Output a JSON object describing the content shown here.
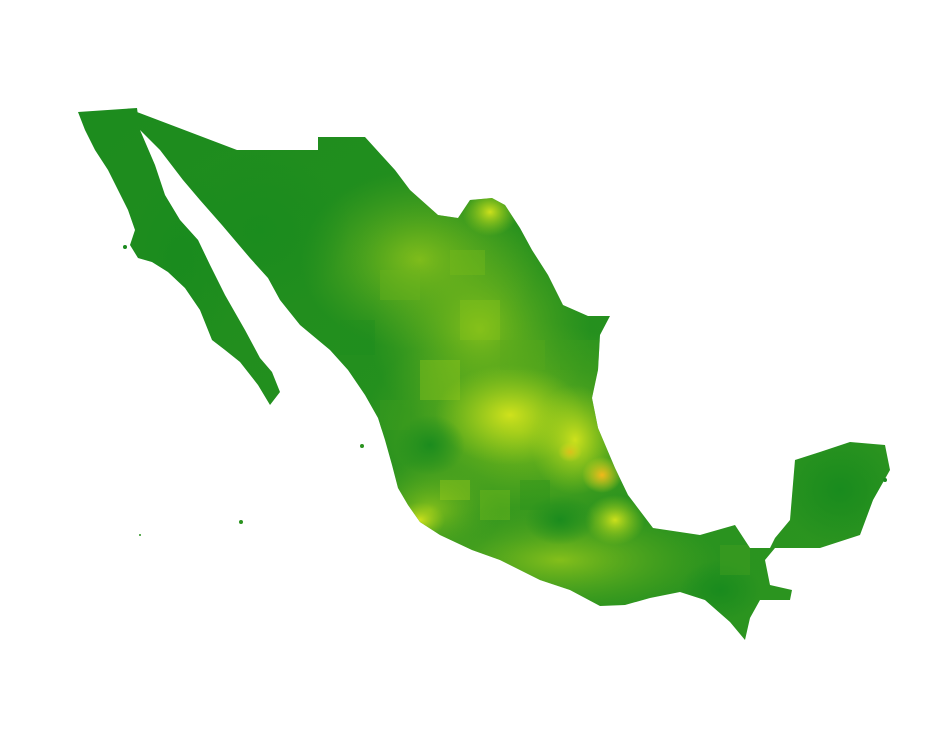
{
  "map": {
    "region": "Mexico",
    "colors": {
      "background": "#ffffff",
      "low": "#1a8a1e",
      "mid_low": "#3f9f1f",
      "mid": "#7cc21a",
      "mid_high": "#c8e01c",
      "high": "#e8e020",
      "peak": "#f2b81a"
    }
  }
}
